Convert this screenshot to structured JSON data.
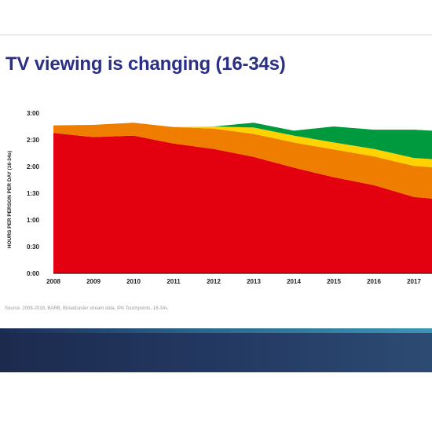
{
  "slide": {
    "title": "TV viewing is changing (16-34s)",
    "source": "Source: 2008-2018, BARB, Broadcaster stream data, IPA Touchpoints. 16-34s."
  },
  "chart_data": {
    "type": "area",
    "stacked": true,
    "title": "",
    "xlabel": "",
    "ylabel": "HOURS PER PERSON PER DAY (16-34s)",
    "x": [
      2008,
      2009,
      2010,
      2011,
      2012,
      2013,
      2014,
      2015,
      2016,
      2017,
      2018
    ],
    "x_tick_labels": [
      "2008",
      "2009",
      "2010",
      "2011",
      "2012",
      "2013",
      "2014",
      "2015",
      "2016",
      "2017"
    ],
    "ylim": [
      0,
      3
    ],
    "y_tick_labels": [
      "0:00",
      "0:30",
      "1:00",
      "1:30",
      "2:00",
      "2:30",
      "3:00"
    ],
    "y_ticks": [
      0,
      0.5,
      1,
      1.5,
      2,
      2.5,
      3
    ],
    "grid": false,
    "legend": "none",
    "series": [
      {
        "color": "#e3000f",
        "values": [
          2.63,
          2.55,
          2.58,
          2.43,
          2.33,
          2.18,
          1.98,
          1.8,
          1.65,
          1.43,
          1.36
        ]
      },
      {
        "color": "#ef7d00",
        "values": [
          0.14,
          0.23,
          0.24,
          0.31,
          0.38,
          0.43,
          0.47,
          0.52,
          0.54,
          0.58,
          0.6
        ]
      },
      {
        "color": "#ffd200",
        "values": [
          0.0,
          0.0,
          0.0,
          0.0,
          0.04,
          0.12,
          0.13,
          0.13,
          0.14,
          0.15,
          0.15
        ]
      },
      {
        "color": "#009a3e",
        "values": [
          0.0,
          0.0,
          0.0,
          0.0,
          0.0,
          0.09,
          0.09,
          0.3,
          0.36,
          0.53,
          0.54
        ]
      }
    ]
  }
}
